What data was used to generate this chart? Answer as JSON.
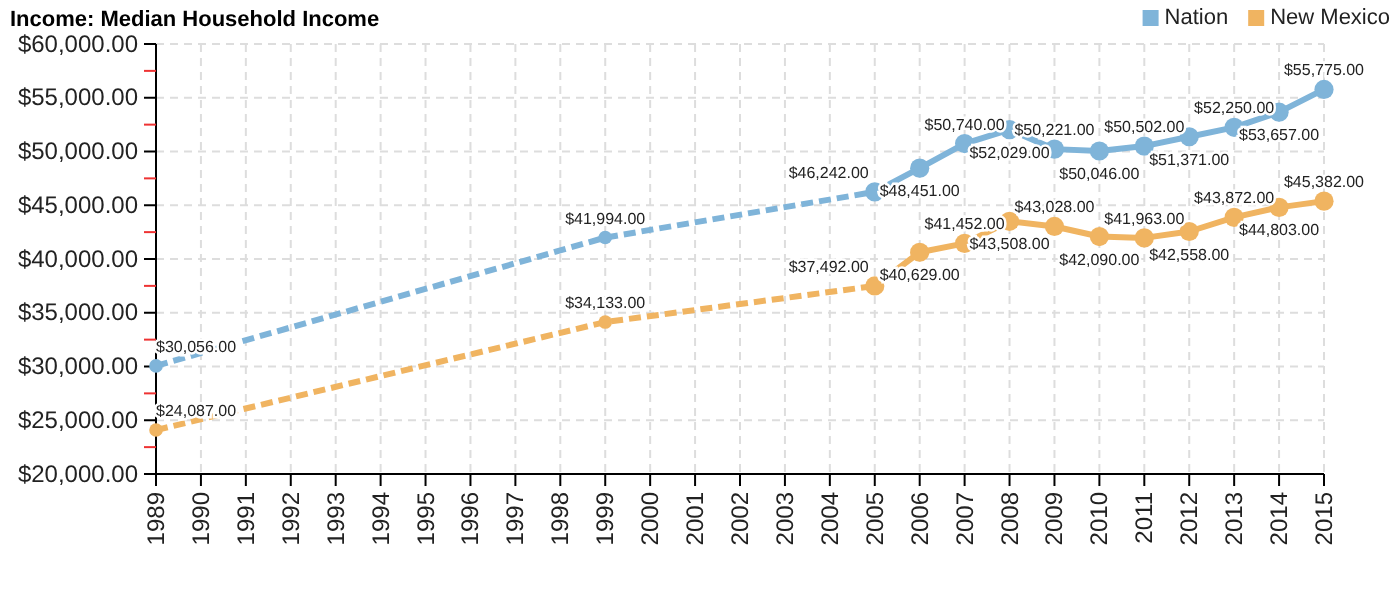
{
  "chart_data": {
    "type": "line",
    "title": "Income: Median Household Income",
    "series": [
      {
        "name": "Nation",
        "color": "#7fb4d9",
        "line_style": "solid",
        "x": [
          2005,
          2006,
          2007,
          2008,
          2009,
          2010,
          2011,
          2012,
          2013,
          2014,
          2015
        ],
        "values": [
          46242,
          48451,
          50740,
          52029,
          50221,
          50046,
          50502,
          51371,
          52250,
          53657,
          55775
        ],
        "value_labels": [
          "$46,242.00",
          "$48,451.00",
          "$50,740.00",
          "$52,029.00",
          "$50,221.00",
          "$50,046.00",
          "$50,502.00",
          "$51,371.00",
          "$52,250.00",
          "$53,657.00",
          "$55,775.00"
        ]
      },
      {
        "color": "#7fb4d9",
        "line_style": "dashed",
        "x": [
          1989,
          1999,
          2005
        ],
        "values": [
          30056,
          41994,
          46242
        ],
        "value_labels": [
          "$30,056.00",
          "$41,994.00",
          null
        ]
      },
      {
        "name": "New Mexico",
        "color": "#f0b461",
        "line_style": "solid",
        "x": [
          2005,
          2006,
          2007,
          2008,
          2009,
          2010,
          2011,
          2012,
          2013,
          2014,
          2015
        ],
        "values": [
          37492,
          40629,
          41452,
          43508,
          43028,
          42090,
          41963,
          42558,
          43872,
          44803,
          45382
        ],
        "value_labels": [
          "$37,492.00",
          "$40,629.00",
          "$41,452.00",
          "$43,508.00",
          "$43,028.00",
          "$42,090.00",
          "$41,963.00",
          "$42,558.00",
          "$43,872.00",
          "$44,803.00",
          "$45,382.00"
        ]
      },
      {
        "color": "#f0b461",
        "line_style": "dashed",
        "x": [
          1989,
          1999,
          2005
        ],
        "values": [
          24087,
          34133,
          37492
        ],
        "value_labels": [
          "$24,087.00",
          "$34,133.00",
          null
        ]
      }
    ],
    "xlim": [
      1989,
      2015
    ],
    "xticks": [
      1989,
      1990,
      1991,
      1992,
      1993,
      1994,
      1995,
      1996,
      1997,
      1998,
      1999,
      2000,
      2001,
      2002,
      2003,
      2004,
      2005,
      2006,
      2007,
      2008,
      2009,
      2010,
      2011,
      2012,
      2013,
      2014,
      2015
    ],
    "ylim": [
      20000,
      60000
    ],
    "yticks": [
      {
        "value": 20000,
        "label": "$20,000.00"
      },
      {
        "value": 22500,
        "label": null
      },
      {
        "value": 25000,
        "label": "$25,000.00"
      },
      {
        "value": 27500,
        "label": null
      },
      {
        "value": 30000,
        "label": "$30,000.00"
      },
      {
        "value": 32500,
        "label": null
      },
      {
        "value": 35000,
        "label": "$35,000.00"
      },
      {
        "value": 37500,
        "label": null
      },
      {
        "value": 40000,
        "label": "$40,000.00"
      },
      {
        "value": 42500,
        "label": null
      },
      {
        "value": 45000,
        "label": "$45,000.00"
      },
      {
        "value": 47500,
        "label": null
      },
      {
        "value": 50000,
        "label": "$50,000.00"
      },
      {
        "value": 52500,
        "label": null
      },
      {
        "value": 55000,
        "label": "$55,000.00"
      },
      {
        "value": 57500,
        "label": null
      },
      {
        "value": 60000,
        "label": "$60,000.00"
      }
    ],
    "grid": true,
    "legend": "top right",
    "marker": "circle"
  }
}
